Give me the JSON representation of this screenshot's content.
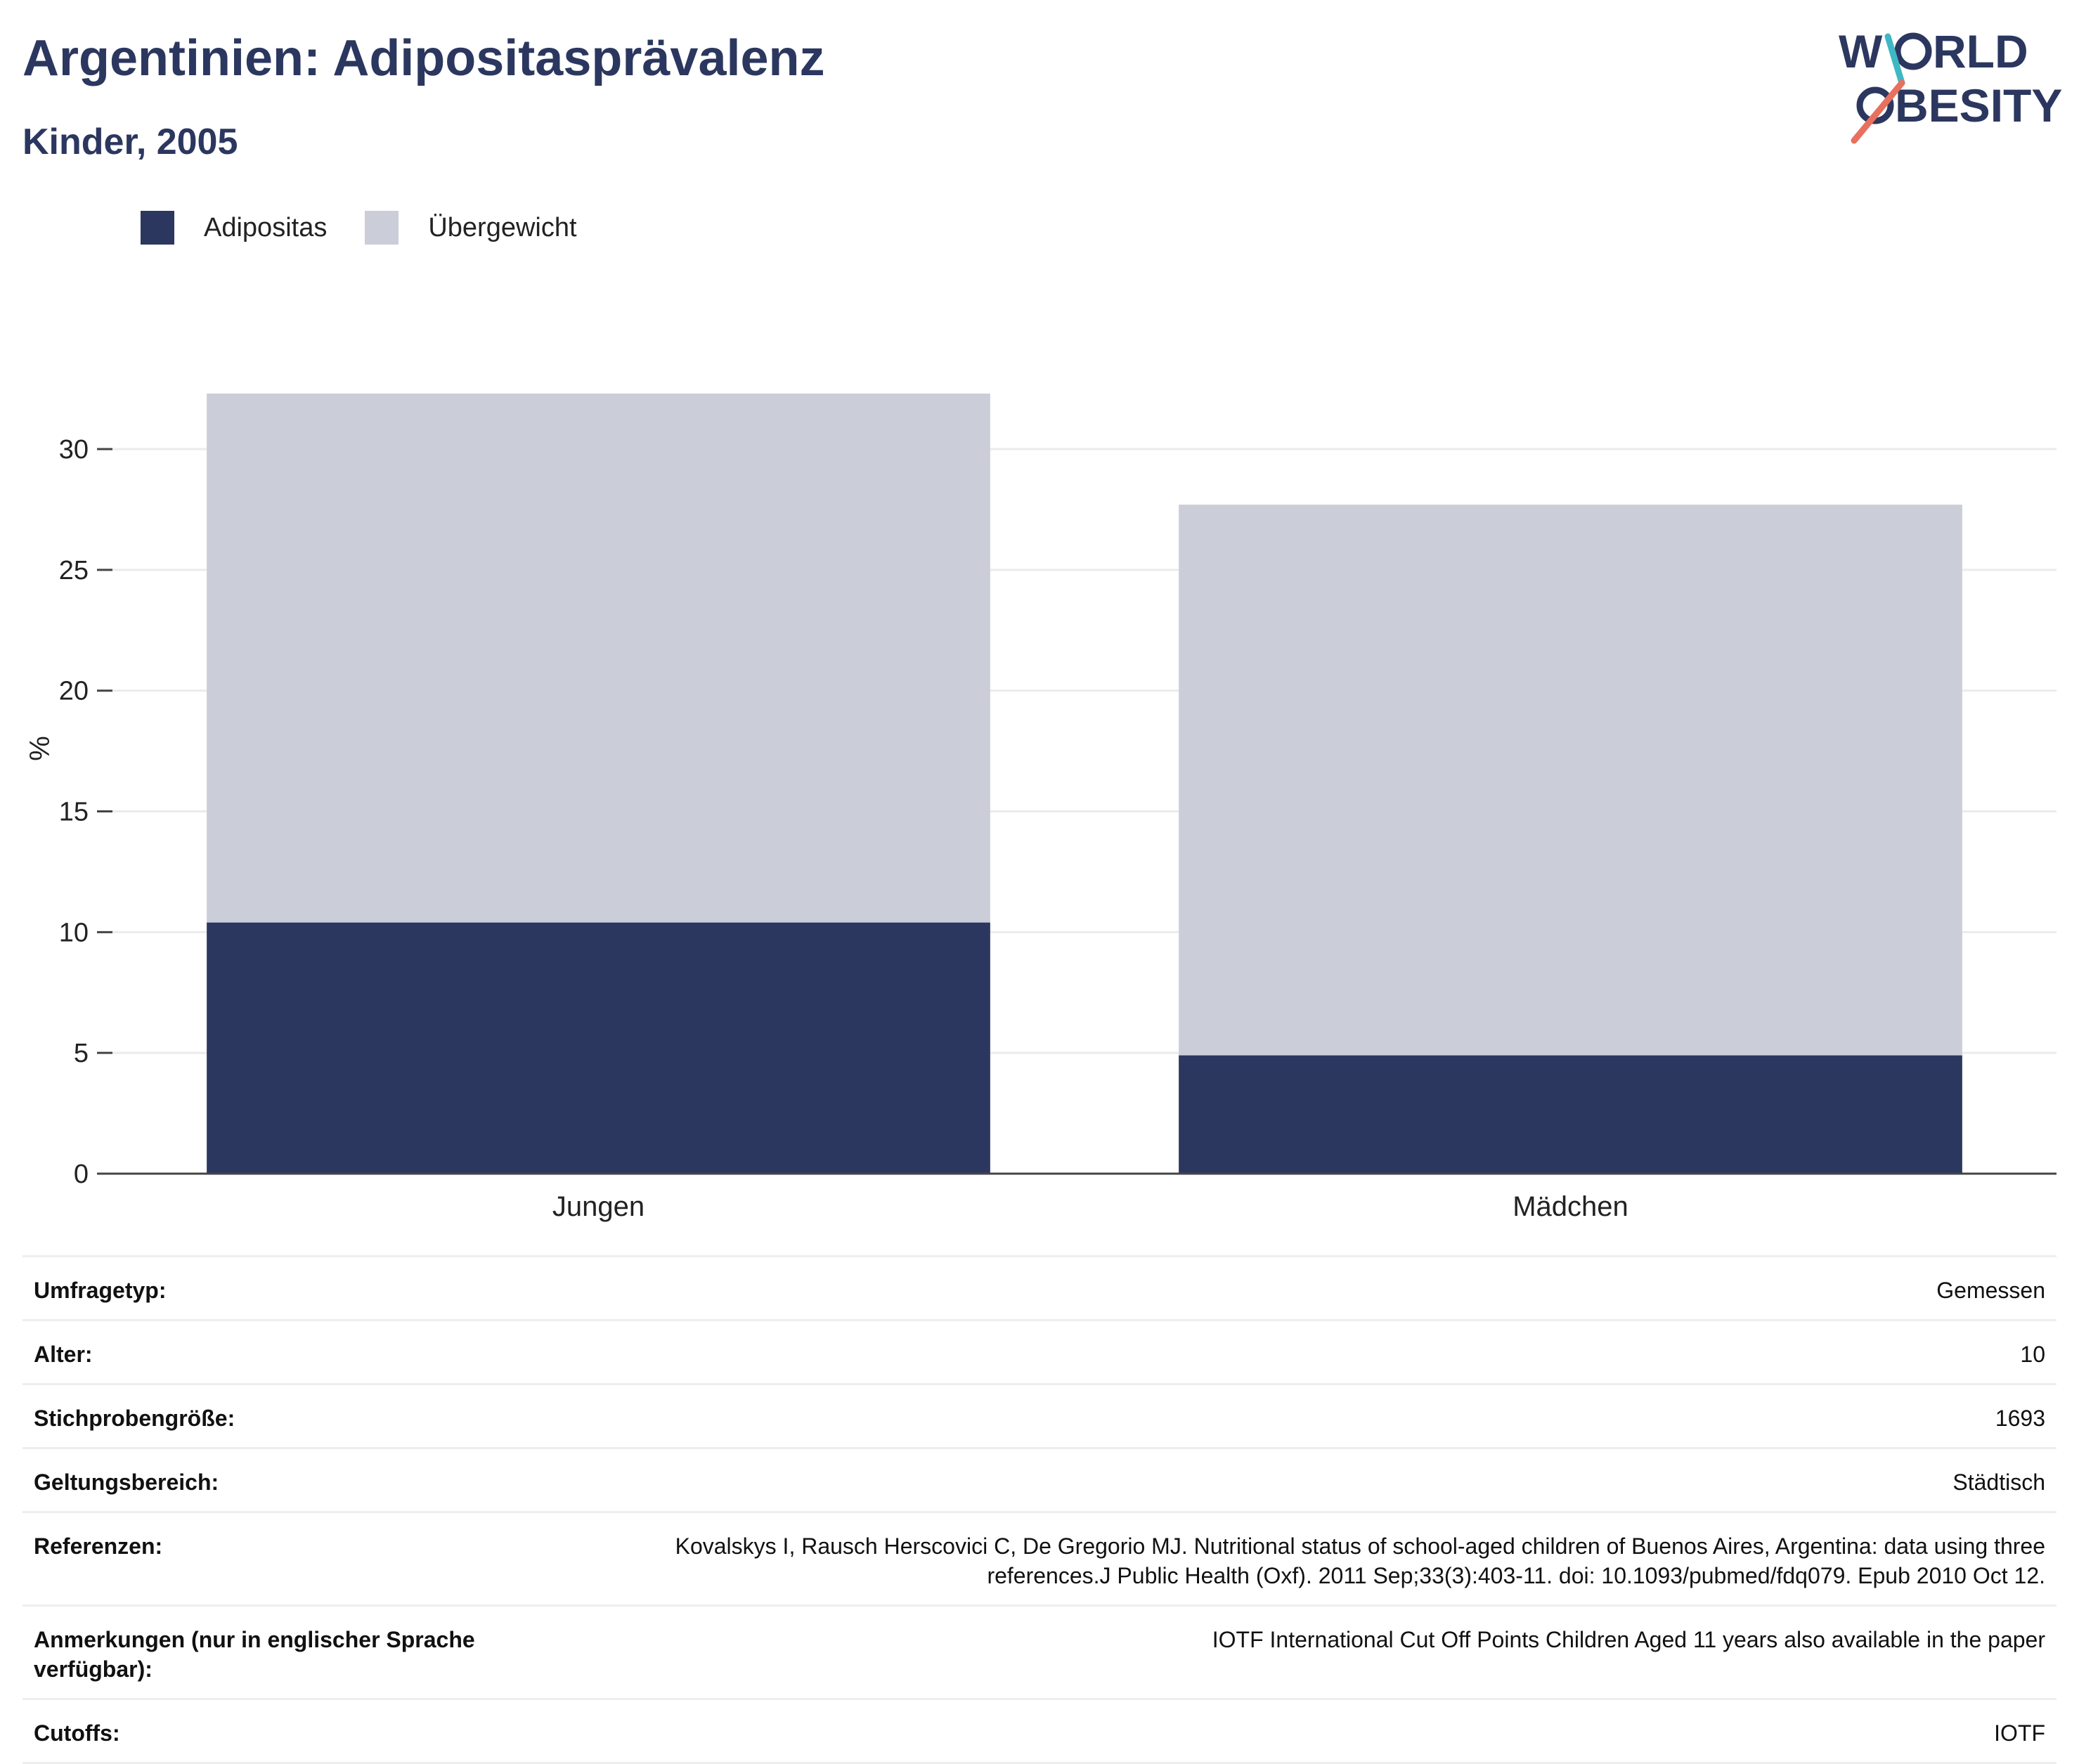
{
  "header": {
    "title": "Argentinien: Adipositasprävalenz",
    "subtitle": "Kinder, 2005"
  },
  "logo": {
    "line1": "W  RLD",
    "line2": "  BESITY",
    "text": "WORLD OBESITY",
    "colors": {
      "text": "#2b375f",
      "slash_top": "#3fb8c4",
      "slash_bottom": "#e8705e"
    }
  },
  "legend": {
    "items": [
      {
        "label": "Adipositas",
        "color": "#2b375f"
      },
      {
        "label": "Übergewicht",
        "color": "#cbcdd8"
      }
    ]
  },
  "chart_data": {
    "type": "bar",
    "stacked": true,
    "categories": [
      "Jungen",
      "Mädchen"
    ],
    "series": [
      {
        "name": "Adipositas",
        "color": "#2b375f",
        "values": [
          10.4,
          4.9
        ]
      },
      {
        "name": "Übergewicht",
        "color": "#cbcdd8",
        "values": [
          21.9,
          22.8
        ]
      }
    ],
    "ylabel": "%",
    "xlabel": "",
    "ylim": [
      0,
      32.3
    ],
    "yticks": [
      0,
      5,
      10,
      15,
      20,
      25,
      30
    ],
    "grid": true,
    "legend_position": "top-left"
  },
  "metadata": {
    "rows": [
      {
        "label": "Umfragetyp:",
        "value": "Gemessen"
      },
      {
        "label": "Alter:",
        "value": "10"
      },
      {
        "label": "Stichprobengröße:",
        "value": "1693"
      },
      {
        "label": "Geltungsbereich:",
        "value": "Städtisch"
      },
      {
        "label": "Referenzen:",
        "value": "Kovalskys I, Rausch Herscovici C, De Gregorio MJ. Nutritional status of school-aged children of Buenos Aires, Argentina: data using three references.J Public Health (Oxf). 2011 Sep;33(3):403-11. doi: 10.1093/pubmed/fdq079. Epub 2010 Oct 12."
      },
      {
        "label": "Anmerkungen (nur in englischer Sprache verfügbar):",
        "value": "IOTF International Cut Off Points Children Aged 11 years also available in the paper"
      },
      {
        "label": "Cutoffs:",
        "value": "IOTF"
      }
    ]
  }
}
